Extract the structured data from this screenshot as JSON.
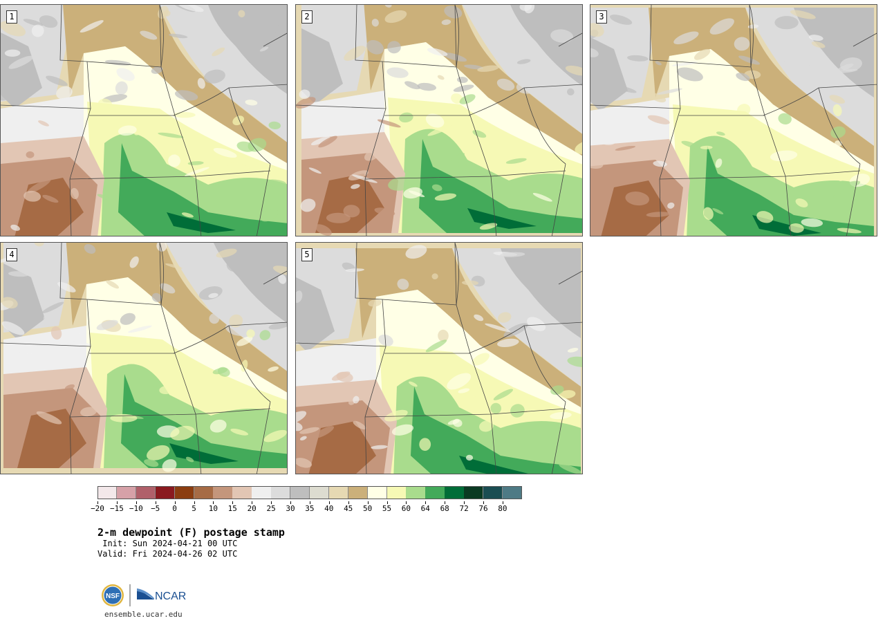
{
  "panels": [
    {
      "number": "1"
    },
    {
      "number": "2"
    },
    {
      "number": "3"
    },
    {
      "number": "4"
    },
    {
      "number": "5"
    }
  ],
  "colorbar": {
    "colors": [
      "#f3e8ea",
      "#d6a1a8",
      "#b0606a",
      "#8a1a1f",
      "#8b3d10",
      "#a66b45",
      "#c4967c",
      "#e2c6b4",
      "#efefef",
      "#dcdcdc",
      "#bebebe",
      "#dddcd0",
      "#e6d9b3",
      "#cbb07a",
      "#ffffe6",
      "#f6f9b5",
      "#a9dc8d",
      "#43aa5a",
      "#006d38",
      "#0a3a22",
      "#1a4d52",
      "#4e7a85"
    ],
    "tick_labels": [
      "−20",
      "−15",
      "−10",
      "−5",
      "0",
      "5",
      "10",
      "15",
      "20",
      "25",
      "30",
      "35",
      "40",
      "45",
      "50",
      "55",
      "60",
      "64",
      "68",
      "72",
      "76",
      "80"
    ]
  },
  "title": "2-m dewpoint (F) postage stamp",
  "init_line": " Init: Sun 2024-04-21 00 UTC",
  "valid_line": "Valid: Fri 2024-04-26 02 UTC",
  "logos": {
    "nsf": "NSF",
    "ncar": "NCAR"
  },
  "site": "ensemble.ucar.edu"
}
